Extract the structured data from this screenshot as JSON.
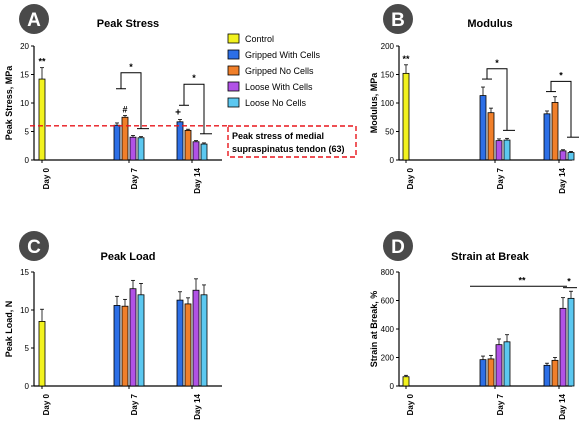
{
  "legend": [
    {
      "name": "Control",
      "color": "#f2f21e"
    },
    {
      "name": "Gripped With Cells",
      "color": "#2d6fe6"
    },
    {
      "name": "Gripped No Cells",
      "color": "#f07f2a"
    },
    {
      "name": "Loose With Cells",
      "color": "#b152e6"
    },
    {
      "name": "Loose No Cells",
      "color": "#5cc8f0"
    }
  ],
  "reference": {
    "line1": "Peak stress of medial",
    "line2": "supraspinatus tendon (63)",
    "color": "#e8151b",
    "value": 6
  },
  "chart_data": [
    {
      "panel": "A",
      "type": "bar",
      "title": "Peak Stress",
      "ylabel": "Peak Stress, MPa",
      "ylim": [
        0,
        20
      ],
      "yticks": [
        0,
        5,
        10,
        15,
        20
      ],
      "categories": [
        "Day 0",
        "Day 7",
        "Day 14"
      ],
      "series": [
        {
          "name": "Control",
          "values": [
            14.2,
            null,
            null
          ],
          "err": [
            2.0,
            null,
            null
          ]
        },
        {
          "name": "Gripped With Cells",
          "values": [
            null,
            6.1,
            6.7
          ],
          "err": [
            null,
            0.4,
            0.4
          ]
        },
        {
          "name": "Gripped No Cells",
          "values": [
            null,
            7.5,
            5.2
          ],
          "err": [
            null,
            0.3,
            0.2
          ]
        },
        {
          "name": "Loose With Cells",
          "values": [
            null,
            4.0,
            3.2
          ],
          "err": [
            null,
            0.3,
            0.2
          ]
        },
        {
          "name": "Loose No Cells",
          "values": [
            null,
            3.9,
            2.8
          ],
          "err": [
            null,
            0.2,
            0.2
          ]
        }
      ],
      "annotations": {
        "control": "**",
        "hash": "#",
        "plus": "+",
        "star7": "*",
        "star14": "*"
      },
      "reference_line": 6
    },
    {
      "panel": "B",
      "type": "bar",
      "title": "Modulus",
      "ylabel": "Modulus, MPa",
      "ylim": [
        0,
        200
      ],
      "yticks": [
        0,
        50,
        100,
        150,
        200
      ],
      "categories": [
        "Day 0",
        "Day 7",
        "Day 14"
      ],
      "series": [
        {
          "name": "Control",
          "values": [
            152,
            null,
            null
          ],
          "err": [
            15,
            null,
            null
          ]
        },
        {
          "name": "Gripped With Cells",
          "values": [
            null,
            113,
            81
          ],
          "err": [
            null,
            15,
            5
          ]
        },
        {
          "name": "Gripped No Cells",
          "values": [
            null,
            83,
            101
          ],
          "err": [
            null,
            8,
            10
          ]
        },
        {
          "name": "Loose With Cells",
          "values": [
            null,
            34,
            16
          ],
          "err": [
            null,
            3,
            2
          ]
        },
        {
          "name": "Loose No Cells",
          "values": [
            null,
            35,
            13
          ],
          "err": [
            null,
            3,
            2
          ]
        }
      ],
      "annotations": {
        "control": "**",
        "star7": "*",
        "star14": "*"
      }
    },
    {
      "panel": "C",
      "type": "bar",
      "title": "Peak Load",
      "ylabel": "Peak Load, N",
      "ylim": [
        0,
        15
      ],
      "yticks": [
        0,
        5,
        10,
        15
      ],
      "categories": [
        "Day 0",
        "Day 7",
        "Day 14"
      ],
      "series": [
        {
          "name": "Control",
          "values": [
            8.5,
            null,
            null
          ],
          "err": [
            1.6,
            null,
            null
          ]
        },
        {
          "name": "Gripped With Cells",
          "values": [
            null,
            10.6,
            11.3
          ],
          "err": [
            null,
            1.2,
            1.1
          ]
        },
        {
          "name": "Gripped No Cells",
          "values": [
            null,
            10.5,
            10.8
          ],
          "err": [
            null,
            0.9,
            0.8
          ]
        },
        {
          "name": "Loose With Cells",
          "values": [
            null,
            12.8,
            12.6
          ],
          "err": [
            null,
            1.1,
            1.5
          ]
        },
        {
          "name": "Loose No Cells",
          "values": [
            null,
            12.0,
            12.0
          ],
          "err": [
            null,
            1.5,
            1.3
          ]
        }
      ]
    },
    {
      "panel": "D",
      "type": "bar",
      "title": "Strain at Break",
      "ylabel": "Strain at Break, %",
      "ylim": [
        0,
        800
      ],
      "yticks": [
        0,
        200,
        400,
        600,
        800
      ],
      "categories": [
        "Day 0",
        "Day 7",
        "Day 14"
      ],
      "series": [
        {
          "name": "Control",
          "values": [
            65,
            null,
            null
          ],
          "err": [
            10,
            null,
            null
          ]
        },
        {
          "name": "Gripped With Cells",
          "values": [
            null,
            185,
            145
          ],
          "err": [
            null,
            25,
            15
          ]
        },
        {
          "name": "Gripped No Cells",
          "values": [
            null,
            190,
            180
          ],
          "err": [
            null,
            25,
            20
          ]
        },
        {
          "name": "Loose With Cells",
          "values": [
            null,
            290,
            545
          ],
          "err": [
            null,
            40,
            75
          ]
        },
        {
          "name": "Loose No Cells",
          "values": [
            null,
            310,
            615
          ],
          "err": [
            null,
            50,
            50
          ]
        }
      ],
      "annotations": {
        "long": "**",
        "short": "*"
      }
    }
  ]
}
